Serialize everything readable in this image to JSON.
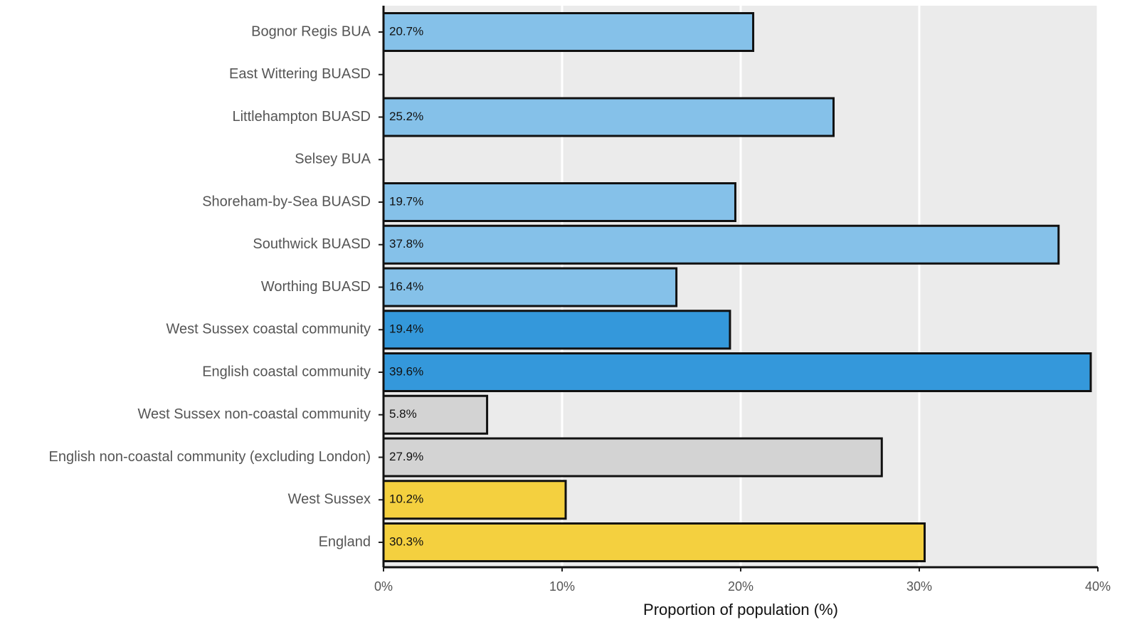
{
  "chart_data": {
    "type": "barh",
    "x_label": "Proportion of population (%)",
    "categories": [
      "Bognor Regis BUA",
      "East Wittering BUASD",
      "Littlehampton BUASD",
      "Selsey BUA",
      "Shoreham-by-Sea BUASD",
      "Southwick BUASD",
      "Worthing BUASD",
      "West Sussex coastal community",
      "English coastal community",
      "West Sussex non-coastal community",
      "English non-coastal community (excluding London)",
      "West Sussex",
      "England"
    ],
    "values": [
      20.7,
      null,
      25.2,
      null,
      19.7,
      37.8,
      16.4,
      19.4,
      39.6,
      5.8,
      27.9,
      10.2,
      30.3
    ],
    "value_labels": [
      "20.7%",
      null,
      "25.2%",
      null,
      "19.7%",
      "37.8%",
      "16.4%",
      "19.4%",
      "39.6%",
      "5.8%",
      "27.9%",
      "10.2%",
      "30.3%"
    ],
    "colors": [
      "#85c1e9",
      null,
      "#85c1e9",
      null,
      "#85c1e9",
      "#85c1e9",
      "#85c1e9",
      "#3498db",
      "#3498db",
      "#d3d3d3",
      "#d3d3d3",
      "#f4d03f",
      "#f4d03f"
    ],
    "xlim": [
      0,
      40
    ],
    "xticks": [
      {
        "value": 0,
        "label": "0%"
      },
      {
        "value": 10,
        "label": "10%"
      },
      {
        "value": 20,
        "label": "20%"
      },
      {
        "value": 30,
        "label": "30%"
      },
      {
        "value": 40,
        "label": "40%"
      }
    ],
    "grid": true
  }
}
